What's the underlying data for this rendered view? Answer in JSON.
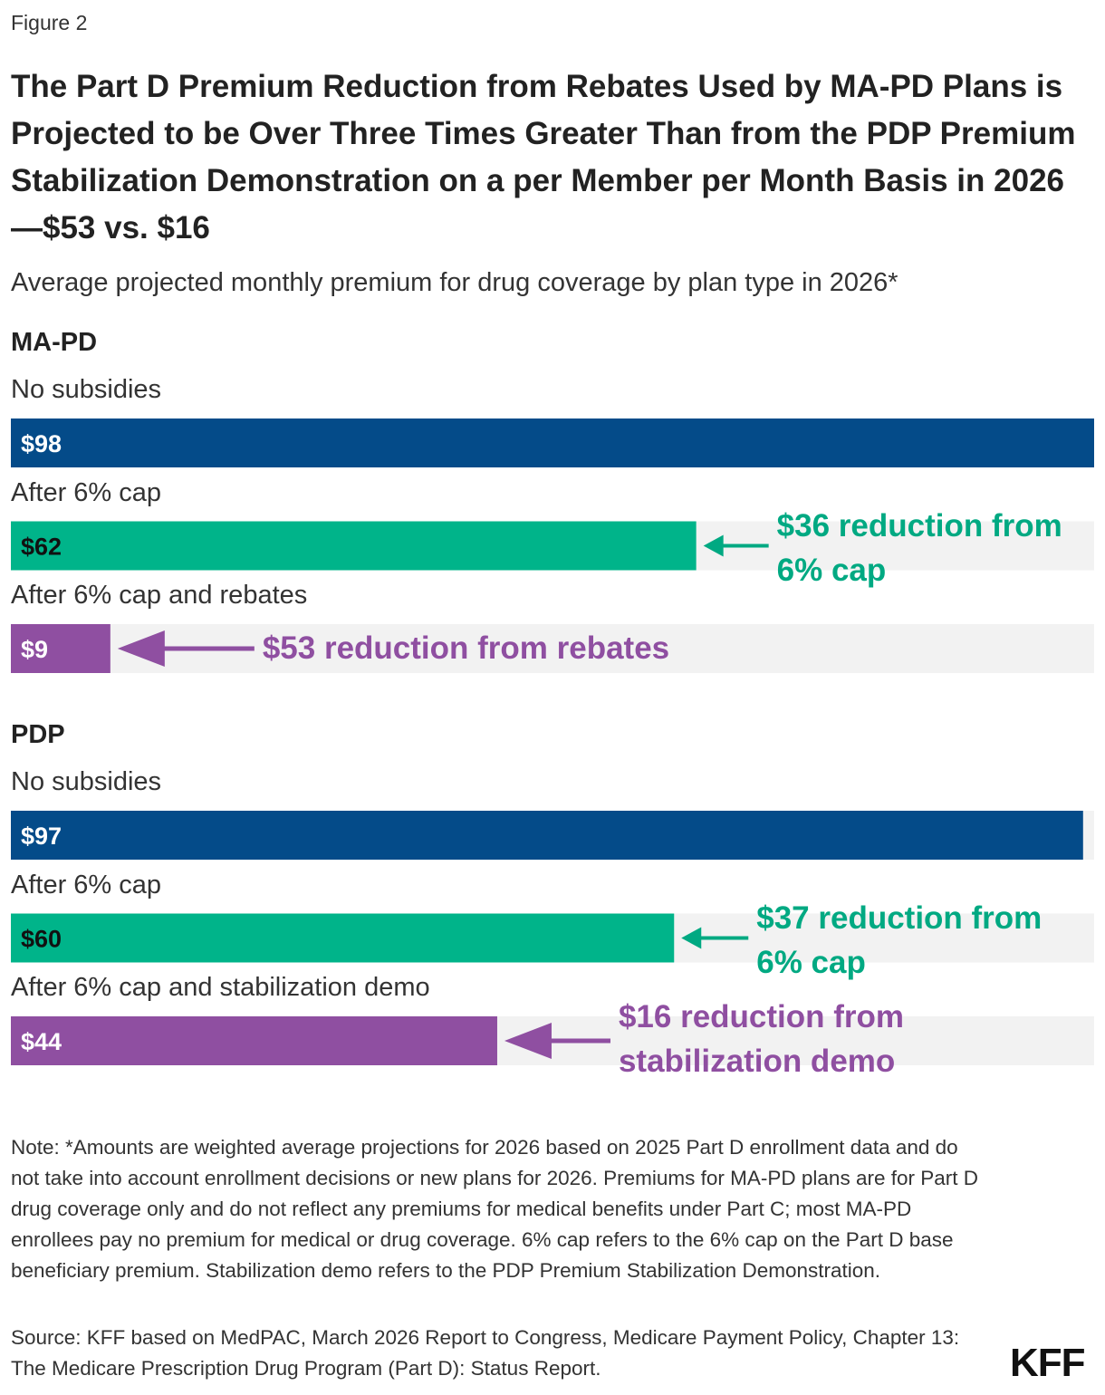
{
  "figure_label": "Figure 2",
  "title": "The Part D Premium Reduction from Rebates Used by MA-PD Plans is Projected to be Over Three Times Greater Than from the PDP Premium Stabilization Demonstration on a per Member per Month Basis in 2026—$53 vs. $16",
  "subtitle": "Average projected monthly premium for drug coverage by plan type in 2026*",
  "chart_data": [
    {
      "type": "bar",
      "title": "MA-PD",
      "categories": [
        "No subsidies",
        "After 6% cap",
        "After 6% cap and rebates"
      ],
      "values": [
        98,
        62,
        9
      ],
      "value_labels": [
        "$98",
        "$62",
        "$9"
      ],
      "colors": [
        "#044b89",
        "#00b48a",
        "#8f4fa1"
      ],
      "xlim": [
        0,
        98
      ],
      "annotations": [
        null,
        {
          "text": "$36 reduction from 6% cap",
          "color": "#00a982"
        },
        {
          "text": "$53 reduction from rebates",
          "color": "#8f4fa1"
        }
      ]
    },
    {
      "type": "bar",
      "title": "PDP",
      "categories": [
        "No subsidies",
        "After 6% cap",
        "After 6% cap and stabilization demo"
      ],
      "values": [
        97,
        60,
        44
      ],
      "value_labels": [
        "$97",
        "$60",
        "$44"
      ],
      "colors": [
        "#044b89",
        "#00b48a",
        "#8f4fa1"
      ],
      "xlim": [
        0,
        98
      ],
      "annotations": [
        null,
        {
          "text": "$37 reduction from 6% cap",
          "color": "#00a982"
        },
        {
          "text": "$16 reduction from stabilization demo",
          "color": "#8f4fa1"
        }
      ]
    }
  ],
  "note": "Note: *Amounts are weighted average projections for 2026 based on 2025 Part D enrollment data and do not take into account enrollment decisions or new plans for 2026. Premiums for MA-PD plans are for Part D drug coverage only and do not reflect any premiums for medical benefits under Part C; most MA-PD enrollees pay no premium for medical or drug coverage. 6% cap refers to the 6% cap on the Part D base beneficiary premium. Stabilization demo refers to the PDP Premium Stabilization Demonstration.",
  "source": "Source: KFF based on MedPAC, March 2026 Report to Congress, Medicare Payment Policy, Chapter 13: The Medicare Prescription Drug Program (Part D): Status Report.",
  "logo": "KFF"
}
